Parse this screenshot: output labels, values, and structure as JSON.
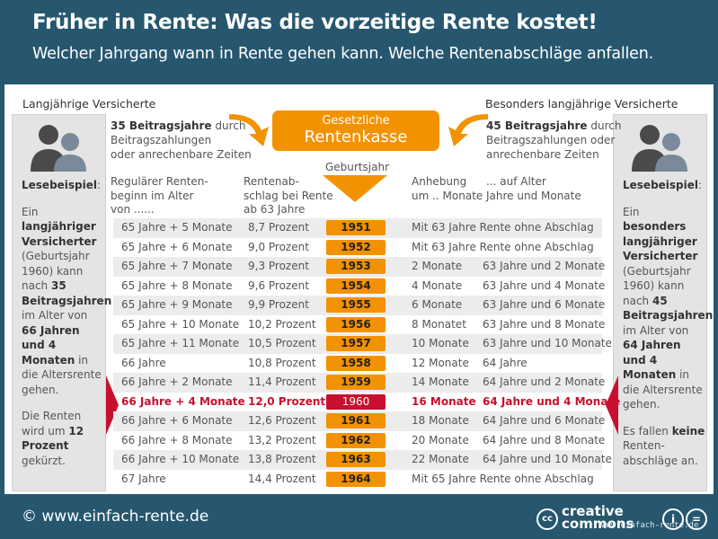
{
  "header": {
    "title": "Früher in Rente: Was die vorzeitige Rente kostet!",
    "subtitle": "Welcher Jahrgang wann in Rente gehen kann. Welche Rentenabschläge anfallen."
  },
  "left": {
    "title": "Langjährige Versicherte",
    "intro_bold": "35 Beitragsjahre",
    "intro_rest1": " durch",
    "intro_line2": "Beitragszahlungen",
    "intro_line3": "oder anrechenbare Zeiten",
    "example_label": "Lesebeispiel",
    "example_colon": ":",
    "ex_1": "Ein ",
    "ex_2": "langjähriger Versicherter",
    "ex_3": " (Geburtsjahr 1960) kann nach ",
    "ex_4": "35 Beitragsjahren",
    "ex_5": " im Alter von ",
    "ex_6": "66 Jahren und 4 Monaten",
    "ex_7": " in die Altersrente gehen.",
    "ex_8": "Die Renten wird um ",
    "ex_9": "12 Prozent",
    "ex_10": " gekürzt."
  },
  "right": {
    "title": "Besonders langjährige Versicherte",
    "intro_bold": "45 Beitragsjahre",
    "intro_rest1": " durch",
    "intro_line2": "Beitragszahlungen oder",
    "intro_line3": "anrechenbare Zeiten",
    "example_label": "Lesebeispiel",
    "example_colon": ":",
    "ex_1": "Ein ",
    "ex_2": "besonders langjähriger Versicherter",
    "ex_3": " (Geburtsjahr 1960) kann nach ",
    "ex_4": "45 Beitragsjahren",
    "ex_5": " im Alter von ",
    "ex_6": "64 Jahren und 4 Monaten",
    "ex_7": " in die Altersrente gehen.",
    "ex_8": "Es fallen ",
    "ex_9": "keine",
    "ex_10": " Renten-abschläge an."
  },
  "kasse": {
    "line1": "Gesetzliche",
    "line2": "Rentenkasse"
  },
  "table": {
    "head_geburt": "Geburtsjahr",
    "head_beginn": [
      "Regulärer Renten-",
      "beginn im Alter",
      "von ......"
    ],
    "head_abschlag": [
      "Rentenab-",
      "schlag bei Rente",
      "ab 63 Jahre"
    ],
    "head_anhebung": [
      "Anhebung",
      "um .. Monate"
    ],
    "head_alter": [
      "... auf Alter",
      "Jahre und Monate"
    ],
    "rows": [
      {
        "beginn": "65 Jahre + 5 Monate",
        "abschlag": "8,7 Prozent",
        "jahr": "1951",
        "anhebung": "Mit 63 Jahre Rente ohne Abschlag",
        "alter": ""
      },
      {
        "beginn": "65 Jahre + 6 Monate",
        "abschlag": "9,0 Prozent",
        "jahr": "1952",
        "anhebung": "Mit 63 Jahre Rente ohne Abschlag",
        "alter": ""
      },
      {
        "beginn": "65 Jahre + 7 Monate",
        "abschlag": "9,3 Prozent",
        "jahr": "1953",
        "anhebung": "2 Monate",
        "alter": "63 Jahre und 2 Monate"
      },
      {
        "beginn": "65 Jahre + 8 Monate",
        "abschlag": "9,6 Prozent",
        "jahr": "1954",
        "anhebung": "4 Monate",
        "alter": "63 Jahre und 4 Monate"
      },
      {
        "beginn": "65 Jahre + 9 Monate",
        "abschlag": "9,9 Prozent",
        "jahr": "1955",
        "anhebung": "6 Monate",
        "alter": "63 Jahre und 6 Monate"
      },
      {
        "beginn": "65 Jahre + 10 Monate",
        "abschlag": "10,2 Prozent",
        "jahr": "1956",
        "anhebung": "8 Monatet",
        "alter": "63 Jahre und 8 Monate"
      },
      {
        "beginn": "65 Jahre + 11 Monate",
        "abschlag": "10,5 Prozent",
        "jahr": "1957",
        "anhebung": "10 Monate",
        "alter": "63 Jahre und 10 Monate"
      },
      {
        "beginn": "66 Jahre",
        "abschlag": "10,8 Prozent",
        "jahr": "1958",
        "anhebung": "12 Monate",
        "alter": "64 Jahre"
      },
      {
        "beginn": "66 Jahre + 2 Monate",
        "abschlag": "11,4 Prozent",
        "jahr": "1959",
        "anhebung": "14 Monate",
        "alter": "64 Jahre und 2 Monate"
      },
      {
        "beginn": "66 Jahre + 4 Monate",
        "abschlag": "12,0 Prozent",
        "jahr": "1960",
        "anhebung": "16 Monate",
        "alter": "64 Jahre und 4 Monate"
      },
      {
        "beginn": "66 Jahre + 6 Monate",
        "abschlag": "12,6 Prozent",
        "jahr": "1961",
        "anhebung": "18 Monate",
        "alter": "64 Jahre und 6 Monate"
      },
      {
        "beginn": "66 Jahre + 8 Monate",
        "abschlag": "13,2 Prozent",
        "jahr": "1962",
        "anhebung": "20 Monate",
        "alter": "64 Jahre und 8 Monate"
      },
      {
        "beginn": "66 Jahre + 10 Monate",
        "abschlag": "13,8 Prozent",
        "jahr": "1963",
        "anhebung": "22 Monate",
        "alter": "64 Jahre und 10 Monate"
      },
      {
        "beginn": "67 Jahre",
        "abschlag": "14,4 Prozent",
        "jahr": "1964",
        "anhebung": "Mit 65 Jahre Rente ohne Abschlag",
        "alter": ""
      }
    ]
  },
  "footer": {
    "url": "© www.einfach-rente.de",
    "cc_line1": "creative",
    "cc_line2": "commons",
    "cc_logo": "cc",
    "watermark": "www.einfach-rente.de",
    "cc_info": "i",
    "cc_eq": "="
  },
  "colors": {
    "header_bg": "#26576f",
    "orange": "#f39200",
    "red": "#c8102e"
  }
}
